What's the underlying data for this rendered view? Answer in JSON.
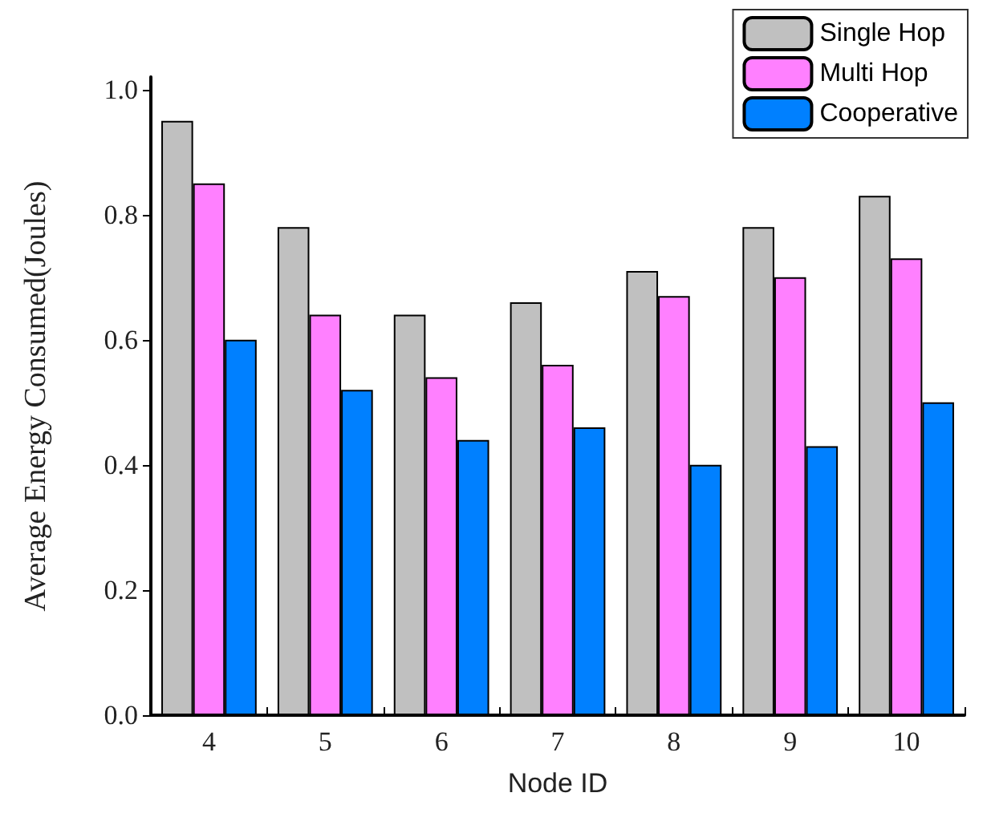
{
  "chart_data": {
    "type": "bar",
    "xlabel": "Node ID",
    "ylabel": "Average Energy Consumed(Joules)",
    "categories": [
      "4",
      "5",
      "6",
      "7",
      "8",
      "9",
      "10"
    ],
    "series": [
      {
        "name": "Single Hop",
        "color": "#c0c0c0",
        "values": [
          0.95,
          0.78,
          0.64,
          0.66,
          0.71,
          0.78,
          0.83
        ]
      },
      {
        "name": "Multi Hop",
        "color": "#ff80ff",
        "values": [
          0.85,
          0.64,
          0.54,
          0.56,
          0.67,
          0.7,
          0.73
        ]
      },
      {
        "name": "Cooperative",
        "color": "#0080ff",
        "values": [
          0.6,
          0.52,
          0.44,
          0.46,
          0.4,
          0.43,
          0.5
        ]
      }
    ],
    "ylim": [
      0,
      1.02
    ],
    "yticks": [
      {
        "value": 0,
        "label": "0.0"
      },
      {
        "value": 0.2,
        "label": "0.2"
      },
      {
        "value": 0.4,
        "label": "0.4"
      },
      {
        "value": 0.6,
        "label": "0.6"
      },
      {
        "value": 0.8,
        "label": "0.8"
      },
      {
        "value": 1,
        "label": "1.0"
      }
    ],
    "grid": false,
    "legend": "top right"
  }
}
